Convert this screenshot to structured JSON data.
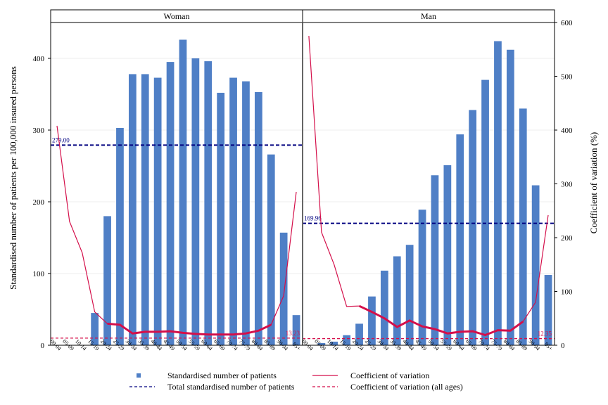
{
  "chart_data": {
    "type": "bar",
    "ylabel_left": "Standardised number of patients per 100,000 insured persons",
    "ylabel_right": "Coefficient of variation (%)",
    "ylim_left": [
      0,
      450
    ],
    "yticks_left": [
      0,
      100,
      200,
      300,
      400
    ],
    "ylim_right": [
      0,
      600
    ],
    "yticks_right": [
      0,
      100,
      200,
      300,
      400,
      500,
      600
    ],
    "categories": [
      "00-04",
      "05-09",
      "10-14",
      "15-19",
      "20-24",
      "25-29",
      "30-34",
      "35-39",
      "40-44",
      "45-49",
      "50-54",
      "55-59",
      "60-64",
      "65-69",
      "70-74",
      "75-79",
      "80-84",
      "85-89",
      "90-94",
      "95+"
    ],
    "colors": {
      "bars": "#4f7fc6",
      "total_line": "#000080",
      "cv_line": "#d40f4a",
      "cv_all_line": "#d40f4a"
    },
    "panels": [
      {
        "title": "Woman",
        "patients": [
          0,
          0,
          0,
          45,
          180,
          303,
          378,
          378,
          373,
          395,
          426,
          400,
          396,
          352,
          373,
          368,
          353,
          266,
          157,
          42
        ],
        "cv": [
          408,
          230,
          172,
          62,
          40,
          38,
          22,
          25,
          25,
          26,
          23,
          21,
          20,
          20,
          20,
          22,
          27,
          38,
          92,
          285
        ],
        "cv_thick_from": 4,
        "cv_thick_to": 17,
        "total": 279.0,
        "total_label": "279.00",
        "cv_all": 13.23,
        "cv_all_label": "13.23"
      },
      {
        "title": "Man",
        "patients": [
          0,
          3,
          5,
          14,
          30,
          68,
          104,
          124,
          140,
          189,
          237,
          251,
          294,
          328,
          370,
          424,
          412,
          330,
          223,
          98
        ],
        "cv": [
          575,
          210,
          150,
          72,
          73,
          62,
          50,
          34,
          46,
          35,
          30,
          22,
          25,
          26,
          19,
          28,
          27,
          44,
          80,
          242
        ],
        "cv_thick_from": 4,
        "cv_thick_to": 17,
        "total": 169.96,
        "total_label": "169.96",
        "cv_all": 12.35,
        "cv_all_label": "12.35"
      }
    ],
    "legend": {
      "position": "bottom",
      "entries": [
        {
          "label": "Standardised number of patients",
          "kind": "bar-marker"
        },
        {
          "label": "Coefficient of variation",
          "kind": "solid-line"
        },
        {
          "label": "Total standardised number of patients",
          "kind": "navy-dashed"
        },
        {
          "label": "Coefficient of variation (all ages)",
          "kind": "red-dashed"
        }
      ]
    }
  }
}
